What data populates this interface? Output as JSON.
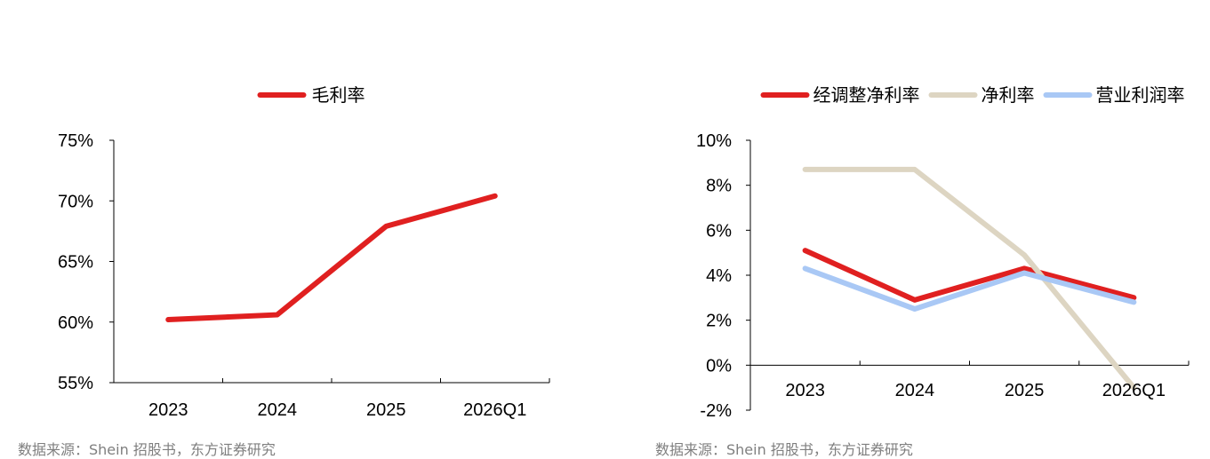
{
  "chart_data": [
    {
      "type": "line",
      "categories": [
        "2023",
        "2024",
        "2025",
        "2026Q1"
      ],
      "ylim": [
        55,
        75
      ],
      "yticks": [
        "75%",
        "70%",
        "65%",
        "60%",
        "55%"
      ],
      "ytick_values": [
        75,
        70,
        65,
        60,
        55
      ],
      "series": [
        {
          "name": "毛利率",
          "values": [
            60.2,
            60.6,
            67.9,
            70.4
          ],
          "color": "#e02020"
        }
      ],
      "legend_position": "top-center",
      "grid": false,
      "source": "数据来源：Shein 招股书，东方证券研究"
    },
    {
      "type": "line",
      "categories": [
        "2023",
        "2024",
        "2025",
        "2026Q1"
      ],
      "ylim": [
        -2,
        10
      ],
      "yticks": [
        "10%",
        "8%",
        "6%",
        "4%",
        "2%",
        "0%",
        "-2%"
      ],
      "ytick_values": [
        10,
        8,
        6,
        4,
        2,
        0,
        -2
      ],
      "series": [
        {
          "name": "经调整净利率",
          "values": [
            5.1,
            2.9,
            4.3,
            3.0
          ],
          "color": "#e02020"
        },
        {
          "name": "净利率",
          "values": [
            8.7,
            8.7,
            4.9,
            -1.0
          ],
          "color": "#ddd5c2"
        },
        {
          "name": "营业利润率",
          "values": [
            4.3,
            2.5,
            4.1,
            2.8
          ],
          "color": "#a9c8f5"
        }
      ],
      "legend_position": "top-center",
      "grid": false,
      "source": "数据来源：Shein 招股书，东方证券研究"
    }
  ]
}
